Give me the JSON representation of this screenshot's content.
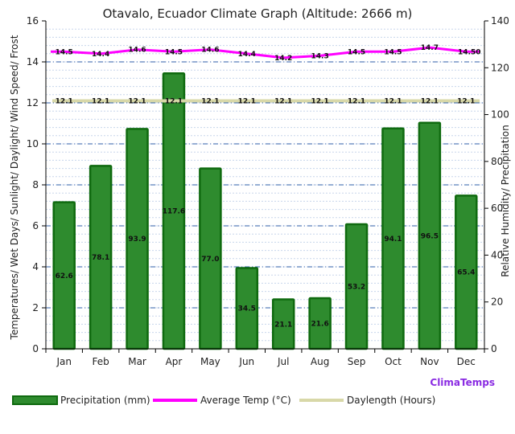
{
  "chart_data": {
    "type": "bar",
    "title": "Otavalo, Ecuador Climate Graph (Altitude: 2666 m)",
    "categories": [
      "Jan",
      "Feb",
      "Mar",
      "Apr",
      "May",
      "Jun",
      "Jul",
      "Aug",
      "Sep",
      "Oct",
      "Nov",
      "Dec"
    ],
    "y_left": {
      "label": "Temperatures/ Wet Days/ Sunlight/ Daylight/ Wind Speed/ Frost",
      "lim": [
        0,
        16
      ],
      "ticks": [
        "0",
        "2",
        "4",
        "6",
        "8",
        "10",
        "12",
        "14",
        "16"
      ]
    },
    "y_right": {
      "label": "Relative Humidity/ Precipitation",
      "lim": [
        0,
        140
      ],
      "ticks": [
        "0",
        "20",
        "40",
        "60",
        "80",
        "100",
        "120",
        "140"
      ]
    },
    "grid": true,
    "legend_position": "bottom",
    "series": [
      {
        "name": "Precipitation (mm)",
        "type": "bar",
        "axis": "right",
        "color": "#2e8b2e",
        "values": [
          62.6,
          78.1,
          93.9,
          117.6,
          77.0,
          34.5,
          21.1,
          21.6,
          53.2,
          94.1,
          96.5,
          65.4
        ],
        "labels": [
          "62.6",
          "78.1",
          "93.9",
          "117.6",
          "77.0",
          "34.5",
          "21.1",
          "21.6",
          "53.2",
          "94.1",
          "96.5",
          "65.4"
        ]
      },
      {
        "name": "Average Temp (°C)",
        "type": "line",
        "axis": "left",
        "color": "#ff00ff",
        "values": [
          14.5,
          14.4,
          14.6,
          14.5,
          14.6,
          14.4,
          14.2,
          14.3,
          14.5,
          14.5,
          14.7,
          14.5
        ],
        "labels": [
          "14.5",
          "14.4",
          "14.6",
          "14.5",
          "14.6",
          "14.4",
          "14.2",
          "14.3",
          "14.5",
          "14.5",
          "14.7",
          "14.50"
        ]
      },
      {
        "name": "Daylength (Hours)",
        "type": "line",
        "axis": "left",
        "color": "#d8d8a8",
        "values": [
          12.1,
          12.1,
          12.1,
          12.1,
          12.1,
          12.1,
          12.1,
          12.1,
          12.1,
          12.1,
          12.1,
          12.1
        ],
        "labels": [
          "12.1",
          "12.1",
          "12.1",
          "12.1",
          "12.1",
          "12.1",
          "12.1",
          "12.1",
          "12.1",
          "12.1",
          "12.1",
          "12.1"
        ]
      }
    ]
  },
  "brand": "ClimaTemps",
  "brand_color": "#8a2be2"
}
